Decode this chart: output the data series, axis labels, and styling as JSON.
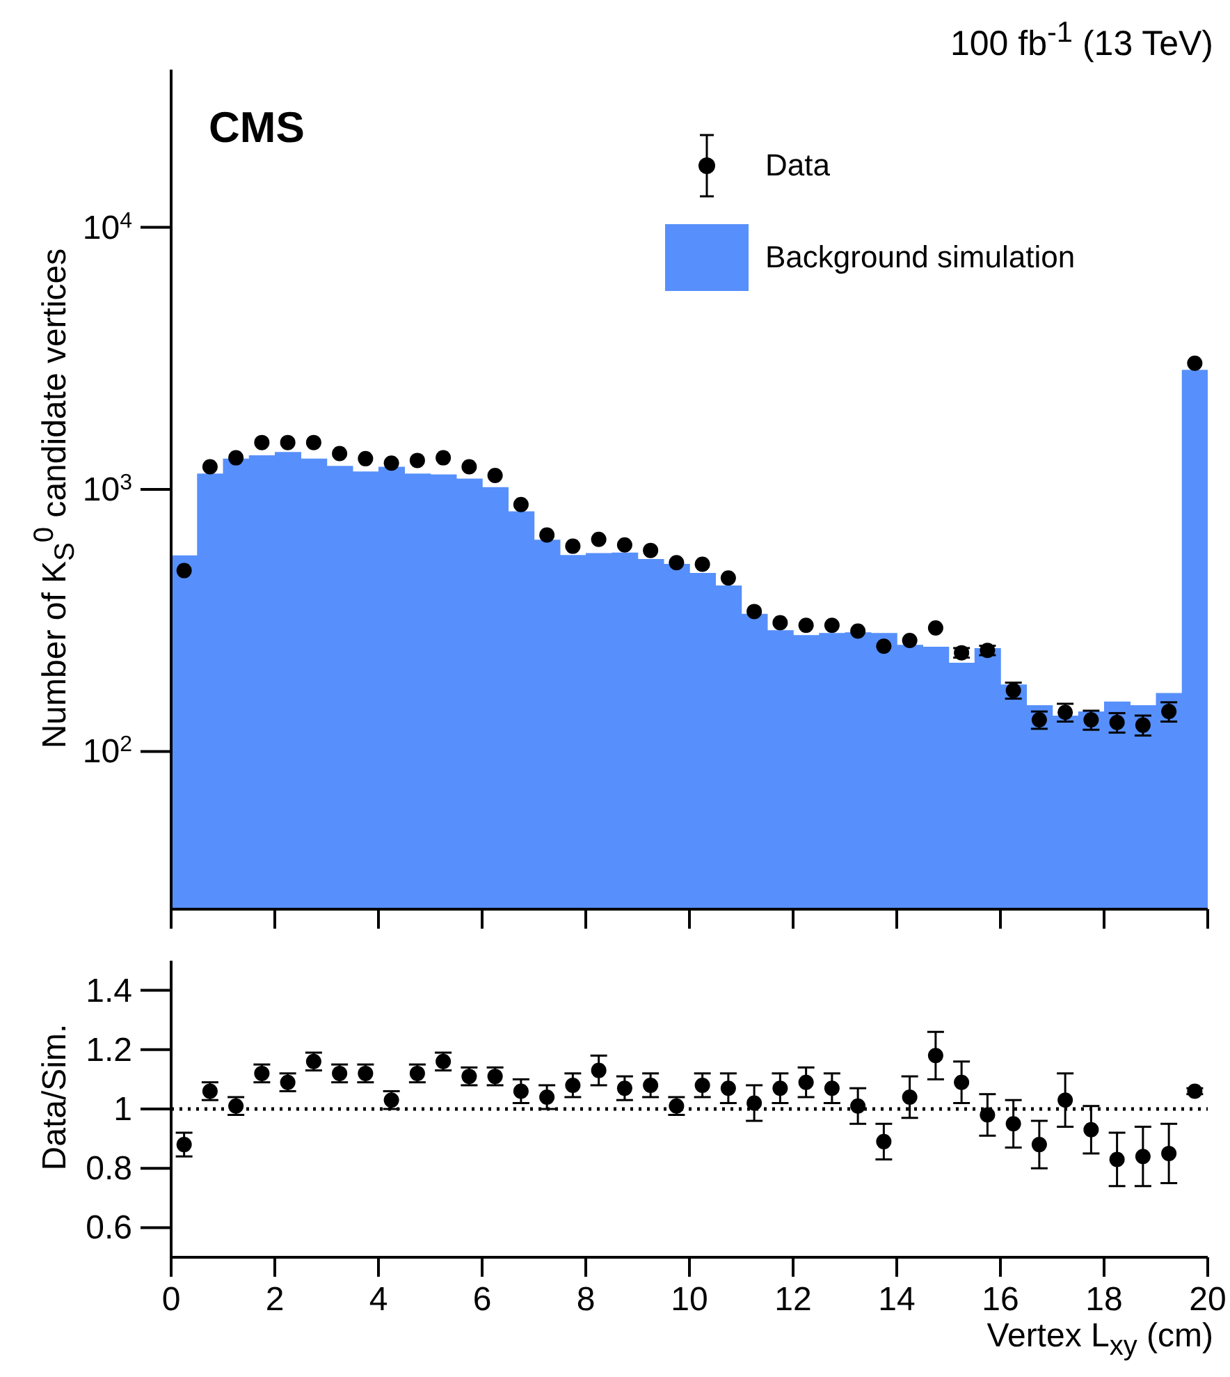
{
  "chart_data": [
    {
      "type": "histogram",
      "title": "100 fb$^{-1}$ (13 TeV)",
      "ylabel": "Number of K$_{S}$$^{0}$ candidate vertices",
      "annotations": [
        "CMS"
      ],
      "bins": [
        0,
        0.5,
        1,
        1.5,
        2,
        2.5,
        3,
        3.5,
        4,
        4.5,
        5,
        5.5,
        6,
        6.5,
        7,
        7.5,
        8,
        8.5,
        9,
        9.5,
        10,
        10.5,
        11,
        11.5,
        12,
        12.5,
        13,
        13.5,
        14,
        14.5,
        15,
        15.5,
        16,
        16.5,
        17,
        17.5,
        18,
        18.5,
        19,
        19.5,
        20
      ],
      "series": [
        {
          "name": "Background simulation",
          "color": "#5790fc",
          "values": [
            560,
            1150,
            1310,
            1350,
            1390,
            1310,
            1230,
            1170,
            1220,
            1150,
            1140,
            1100,
            1020,
            825,
            643,
            562,
            571,
            574,
            542,
            520,
            480,
            430,
            335,
            290,
            278,
            283,
            285,
            283,
            255,
            251,
            218,
            248,
            180,
            150,
            137,
            142,
            155,
            150,
            167,
            2860
          ]
        },
        {
          "type": "scatter",
          "name": "Data",
          "color": "#000000",
          "x": [
            0.25,
            0.75,
            1.25,
            1.75,
            2.25,
            2.75,
            3.25,
            3.75,
            4.25,
            4.75,
            5.25,
            5.75,
            6.25,
            6.75,
            7.25,
            7.75,
            8.25,
            8.75,
            9.25,
            9.75,
            10.25,
            10.75,
            11.25,
            11.75,
            12.25,
            12.75,
            13.25,
            13.75,
            14.25,
            14.75,
            15.25,
            15.75,
            16.25,
            16.75,
            17.25,
            17.75,
            18.25,
            18.75,
            19.25,
            19.75
          ],
          "values": [
            490,
            1220,
            1320,
            1510,
            1510,
            1510,
            1370,
            1310,
            1260,
            1290,
            1320,
            1220,
            1130,
            875,
            670,
            607,
            645,
            614,
            585,
            525,
            518,
            459,
            342,
            310,
            303,
            303,
            288,
            252,
            265,
            296,
            238,
            243,
            171,
            132,
            141,
            132,
            129,
            126,
            142,
            3030
          ],
          "errors": [
            null,
            null,
            null,
            null,
            null,
            null,
            null,
            null,
            null,
            null,
            null,
            null,
            null,
            null,
            null,
            null,
            null,
            null,
            null,
            null,
            null,
            null,
            null,
            null,
            null,
            null,
            null,
            null,
            null,
            null,
            10,
            10,
            12,
            10,
            11,
            11,
            11,
            11,
            12,
            null
          ]
        }
      ],
      "xlim": [
        0,
        20
      ],
      "xticks": [
        0,
        2,
        4,
        6,
        8,
        10,
        12,
        14,
        16,
        18,
        20
      ],
      "ylim": [
        25,
        40000
      ],
      "yticks": [
        {
          "value": 100,
          "label": "10$^{2}$"
        },
        {
          "value": 1000,
          "label": "10$^{3}$"
        },
        {
          "value": 10000,
          "label": "10$^{4}$"
        }
      ],
      "log": "y",
      "grid": false,
      "legend": "top right",
      "marker": "circle",
      "tick_labels": "y"
    },
    {
      "type": "scatter",
      "xlabel": "Vertex L$_{xy}$ (cm)",
      "ylabel": "Data/Sim.",
      "series": [
        {
          "color": "#000000",
          "x": [
            0.25,
            0.75,
            1.25,
            1.75,
            2.25,
            2.75,
            3.25,
            3.75,
            4.25,
            4.75,
            5.25,
            5.75,
            6.25,
            6.75,
            7.25,
            7.75,
            8.25,
            8.75,
            9.25,
            9.75,
            10.25,
            10.75,
            11.25,
            11.75,
            12.25,
            12.75,
            13.25,
            13.75,
            14.25,
            14.75,
            15.25,
            15.75,
            16.25,
            16.75,
            17.25,
            17.75,
            18.25,
            18.75,
            19.25,
            19.75
          ],
          "values": [
            0.88,
            1.06,
            1.01,
            1.12,
            1.09,
            1.16,
            1.12,
            1.12,
            1.03,
            1.12,
            1.16,
            1.11,
            1.11,
            1.06,
            1.04,
            1.08,
            1.13,
            1.07,
            1.08,
            1.01,
            1.08,
            1.07,
            1.02,
            1.07,
            1.09,
            1.07,
            1.01,
            0.89,
            1.04,
            1.18,
            1.09,
            0.98,
            0.95,
            0.88,
            1.03,
            0.93,
            0.83,
            0.84,
            0.85,
            1.06
          ],
          "errors": [
            0.04,
            0.03,
            0.03,
            0.03,
            0.03,
            0.03,
            0.03,
            0.03,
            0.03,
            0.03,
            0.03,
            0.03,
            0.03,
            0.04,
            0.04,
            0.04,
            0.05,
            0.04,
            0.04,
            0.03,
            0.04,
            0.05,
            0.06,
            0.05,
            0.05,
            0.05,
            0.06,
            0.06,
            0.07,
            0.08,
            0.07,
            0.07,
            0.08,
            0.08,
            0.09,
            0.08,
            0.09,
            0.1,
            0.1,
            0.01
          ]
        }
      ],
      "xlim": [
        0,
        20
      ],
      "xticks": [
        0,
        2,
        4,
        6,
        8,
        10,
        12,
        14,
        16,
        18,
        20
      ],
      "ylim": [
        0.5,
        1.5
      ],
      "yticks": [
        0.6,
        0.8,
        1,
        1.2,
        1.4
      ],
      "ref_lines": [
        {
          "axis": "y",
          "value": 1,
          "line_style": "dotted",
          "color": "#000000"
        }
      ],
      "grid": false,
      "legend": false,
      "marker": "circle"
    }
  ]
}
